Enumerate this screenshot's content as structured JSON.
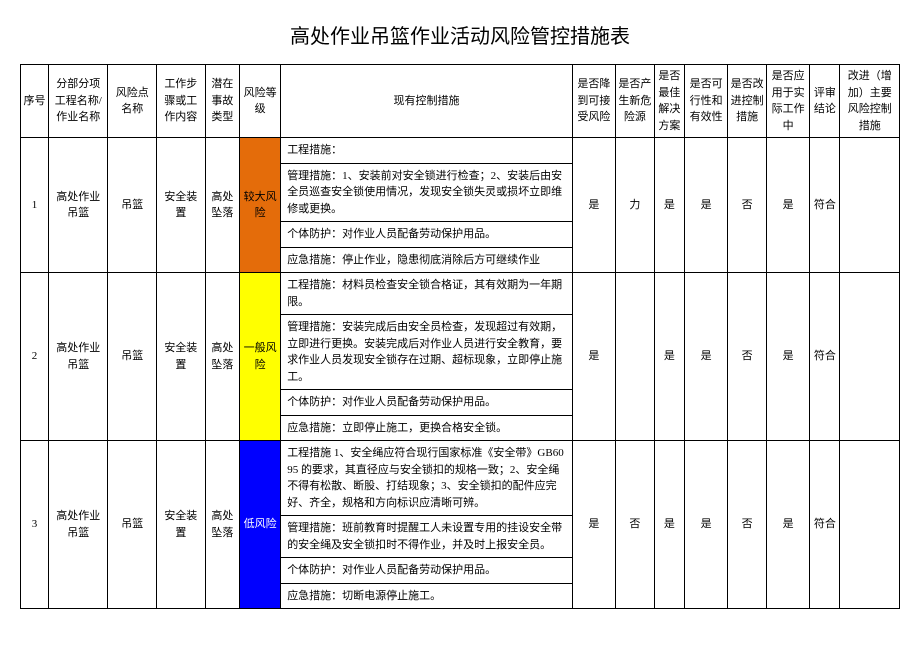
{
  "title": "高处作业吊篮作业活动风险管控措施表",
  "columns": {
    "c1": "序号",
    "c2": "分部分项工程名称/作业名称",
    "c3": "风险点名称",
    "c4": "工作步骤或工作内容",
    "c5": "潜在事故类型",
    "c6": "风险等级",
    "c7": "现有控制措施",
    "c8": "是否降到可接受风险",
    "c9": "是否产生新危险源",
    "c10": "是否最佳解决方案",
    "c11": "是否可行性和有效性",
    "c12": "是否改进控制措施",
    "c13": "是否应用于实际工作中",
    "c14": "评审结论",
    "c15": "改进（增加）主要风险控制措施"
  },
  "col_widths": {
    "c1": "26px",
    "c2": "55px",
    "c3": "45px",
    "c4": "45px",
    "c5": "32px",
    "c6": "38px",
    "c7": "270px",
    "c8": "40px",
    "c9": "36px",
    "c10": "28px",
    "c11": "40px",
    "c12": "36px",
    "c13": "40px",
    "c14": "28px",
    "c15": "55px"
  },
  "risk_colors": {
    "较大风险": "#e46c0a",
    "一般风险": "#ffff00",
    "低风险": "#0000ff"
  },
  "rows": [
    {
      "seq": "1",
      "project": "高处作业吊篮",
      "point": "吊篮",
      "step": "安全装置",
      "accident": "高处坠落",
      "risk": "较大风险",
      "risk_class": "risk-high",
      "measures": [
        "工程措施：",
        "管理措施：1、安装前对安全锁进行检查；2、安装后由安全员巡查安全锁使用情况，发现安全锁失灵或损坏立即维修或更换。",
        "个体防护：对作业人员配备劳动保护用品。",
        "应急措施：停止作业，隐患彻底消除后方可继续作业"
      ],
      "acceptable": "是",
      "new_hazard": "力",
      "best": "是",
      "feasible": "是",
      "improve": "否",
      "applied": "是",
      "conclusion": "符合",
      "extra": ""
    },
    {
      "seq": "2",
      "project": "高处作业吊篮",
      "point": "吊篮",
      "step": "安全装置",
      "accident": "高处坠落",
      "risk": "一般风险",
      "risk_class": "risk-mid",
      "measures": [
        "工程措施：材料员检查安全锁合格证，其有效期为一年期限。",
        "管理措施：安装完成后由安全员检查，发现超过有效期，立即进行更换。安装完成后对作业人员进行安全教育，要求作业人员发现安全锁存在过期、超标现象，立即停止施工。",
        "个体防护：对作业人员配备劳动保护用品。",
        "应急措施：立即停止施工，更换合格安全锁。"
      ],
      "acceptable": "是",
      "new_hazard": "",
      "best": "是",
      "feasible": "是",
      "improve": "否",
      "applied": "是",
      "conclusion": "符合",
      "extra": ""
    },
    {
      "seq": "3",
      "project": "高处作业吊篮",
      "point": "吊篮",
      "step": "安全装置",
      "accident": "高处坠落",
      "risk": "低风险",
      "risk_class": "risk-low",
      "measures": [
        "工程措施 1、安全绳应符合现行国家标准《安全带》GB6095 的要求，其直径应与安全锁扣的规格一致；2、安全绳不得有松散、断股、打结现象；3、安全锁扣的配件应完好、齐全，规格和方向标识应清晰可辨。",
        "管理措施：班前教育时提醒工人未设置专用的挂设安全带的安全绳及安全锁扣时不得作业，并及时上报安全员。",
        "个体防护：对作业人员配备劳动保护用品。",
        "应急措施：切断电源停止施工。"
      ],
      "acceptable": "是",
      "new_hazard": "否",
      "best": "是",
      "feasible": "是",
      "improve": "否",
      "applied": "是",
      "conclusion": "符合",
      "extra": ""
    }
  ]
}
